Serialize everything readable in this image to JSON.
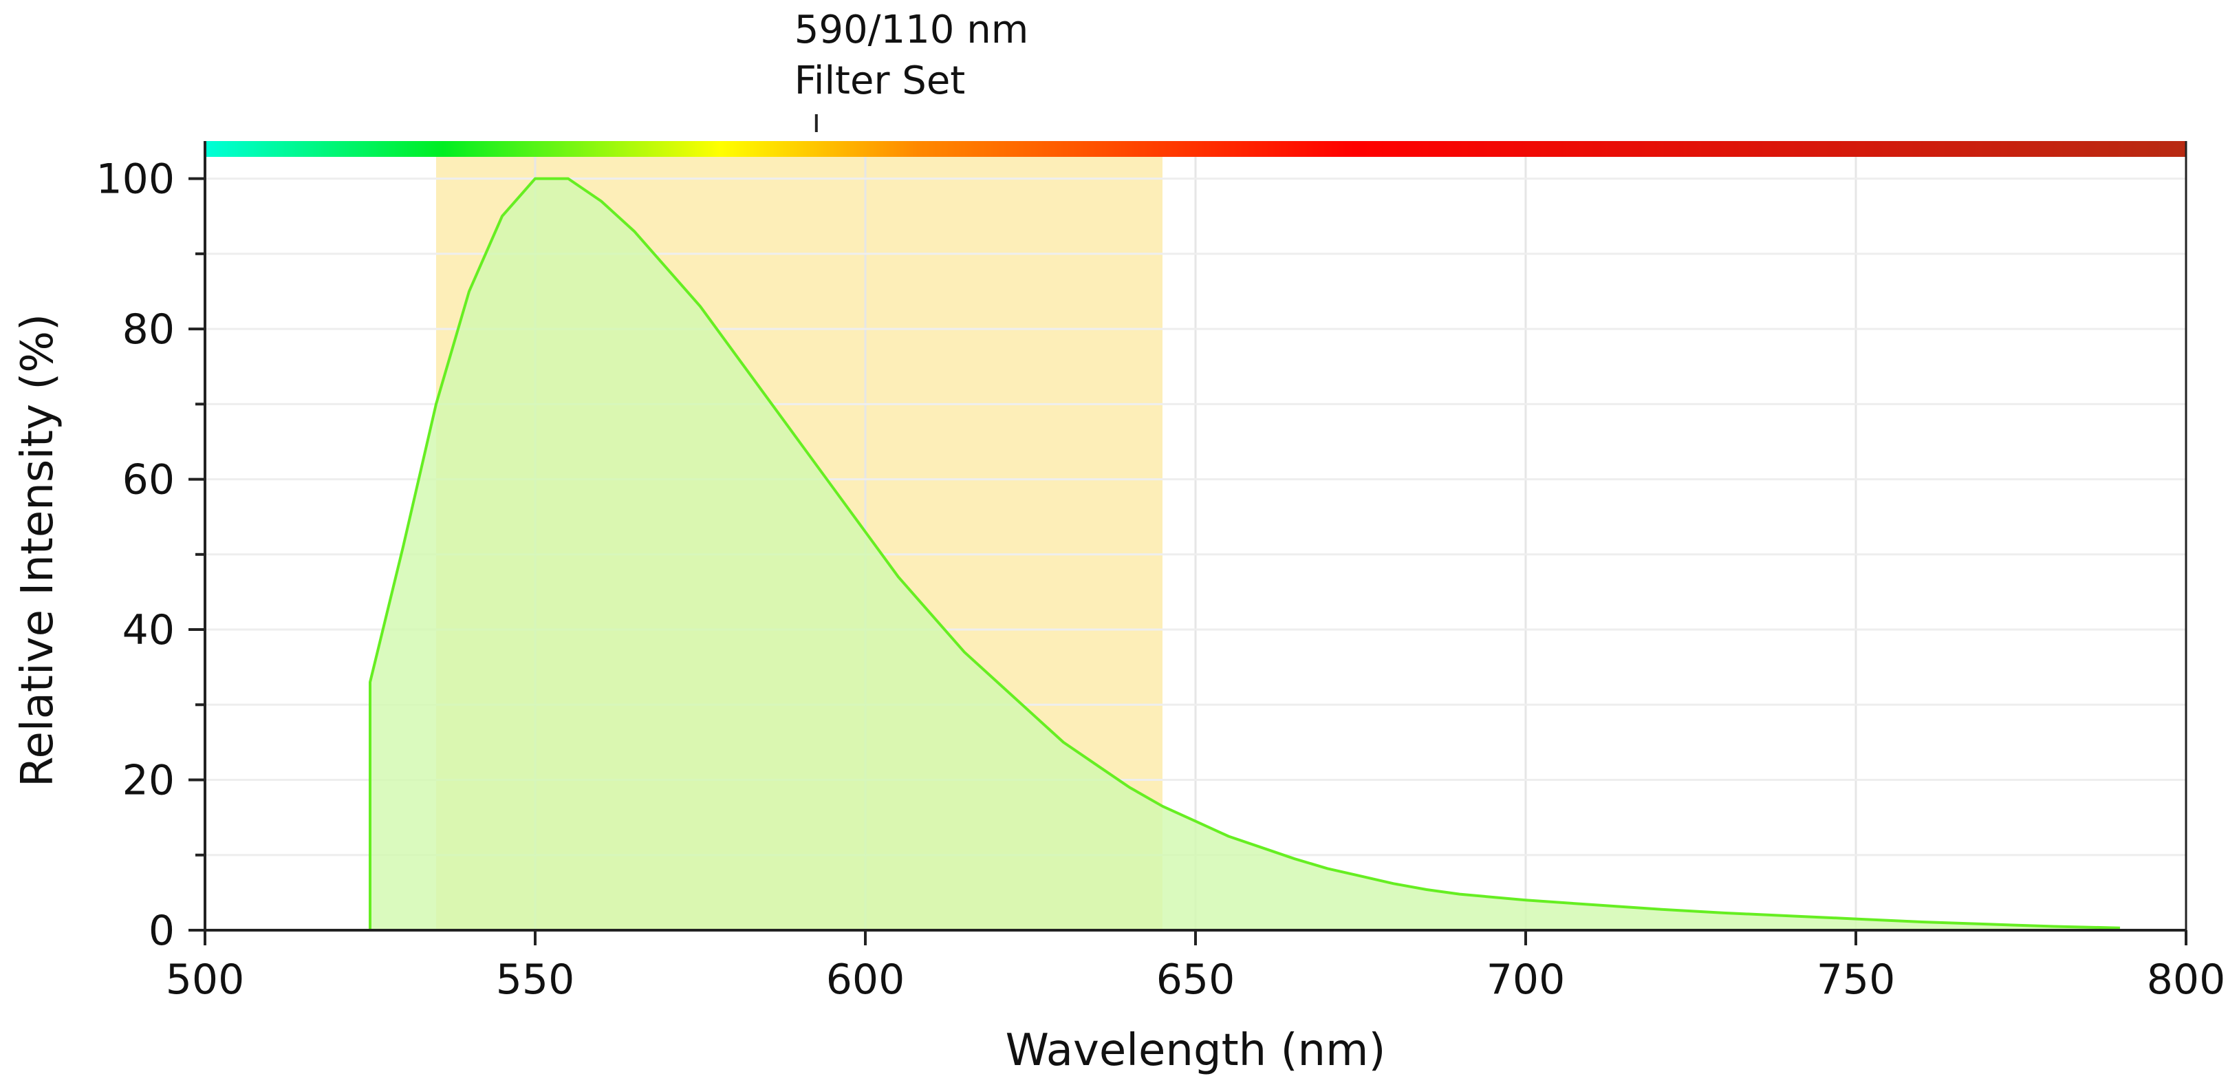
{
  "chart_data": {
    "type": "area",
    "xlabel": "Wavelength (nm)",
    "ylabel": "Relative Intensity (%)",
    "xlim": [
      500,
      800
    ],
    "ylim": [
      0,
      105
    ],
    "x_ticks": [
      "500",
      "550",
      "600",
      "650",
      "700",
      "750",
      "800"
    ],
    "y_ticks": [
      "0",
      "20",
      "40",
      "60",
      "80",
      "100"
    ],
    "grid": true,
    "annotation": {
      "line1": "590/110 nm",
      "line2": "Filter Set",
      "x": 593
    },
    "filter_band": {
      "from": 535,
      "to": 645,
      "color": "#fdeeb8"
    },
    "series": [
      {
        "x": [
          525,
          525,
          530,
          535,
          540,
          545,
          550,
          555,
          560,
          565,
          570,
          575,
          580,
          585,
          590,
          595,
          600,
          605,
          610,
          615,
          620,
          625,
          630,
          635,
          640,
          645,
          650,
          655,
          660,
          665,
          670,
          675,
          680,
          685,
          690,
          700,
          710,
          720,
          730,
          740,
          750,
          760,
          770,
          780,
          790
        ],
        "y": [
          0,
          33,
          51,
          70,
          85,
          95,
          100,
          100,
          97,
          93,
          88,
          83,
          77,
          71,
          65,
          59,
          53,
          47,
          42,
          37,
          33,
          29,
          25,
          22,
          19,
          16.5,
          14.5,
          12.5,
          11,
          9.5,
          8.2,
          7.2,
          6.2,
          5.4,
          4.8,
          4,
          3.4,
          2.8,
          2.3,
          1.9,
          1.5,
          1.1,
          0.8,
          0.5,
          0.3
        ],
        "line_color": "#66ee22",
        "fill_color": "#d2f9b0"
      }
    ],
    "colors": {
      "spectrum_bar": [
        "#00ffd8",
        "#00ee22",
        "#ffff00",
        "#ff8800",
        "#ff0000",
        "#b82a12"
      ]
    }
  }
}
